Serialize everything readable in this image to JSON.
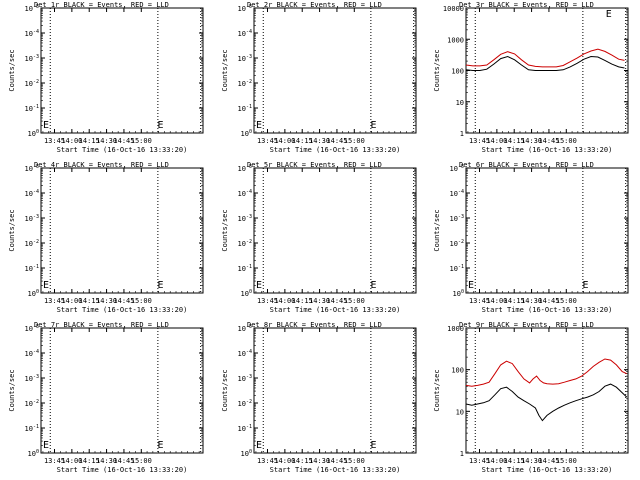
{
  "chart_data": [
    {
      "type": "line",
      "title": "Det 1r BLACK = Events, RED = LLD",
      "xlabel": "Start Time (16-Oct-16 13:33:20)",
      "ylabel": "Counts/sec",
      "x_ticks": [
        "13:45",
        "14:00",
        "14:15",
        "14:30",
        "14:45",
        "15:00"
      ],
      "y_ticks": [
        "10^0",
        "10^-1",
        "10^-2",
        "10^-3",
        "10^-4",
        "10^-5"
      ],
      "vlines_min": [
        8,
        101,
        138
      ],
      "E_markers_min": [
        0,
        99
      ],
      "series": []
    },
    {
      "type": "line",
      "title": "Det 2r BLACK = Events, RED = LLD",
      "xlabel": "Start Time (16-Oct-16 13:33:20)",
      "ylabel": "Counts/sec",
      "x_ticks": [
        "13:45",
        "14:00",
        "14:15",
        "14:30",
        "14:45",
        "15:00"
      ],
      "y_ticks": [
        "10^0",
        "10^-1",
        "10^-2",
        "10^-3",
        "10^-4",
        "10^-5"
      ],
      "vlines_min": [
        8,
        101,
        138
      ],
      "E_markers_min": [
        0,
        99
      ],
      "series": []
    },
    {
      "type": "line",
      "title": "Det 3r BLACK = Events, RED = LLD",
      "xlabel": "Start Time (16-Oct-16 13:33:20)",
      "ylabel": "Counts/sec",
      "x_ticks": [
        "13:45",
        "14:00",
        "14:15",
        "14:30",
        "14:45",
        "15:00"
      ],
      "y_ticks": [
        "1",
        "10",
        "100",
        "1000",
        "10000"
      ],
      "vlines_min": [
        8,
        101,
        138
      ],
      "E_markers_min": [
        119
      ],
      "series": [
        {
          "color": "#000000",
          "x": [
            0,
            6,
            12,
            18,
            24,
            30,
            36,
            42,
            48,
            54,
            60,
            66,
            72,
            78,
            84,
            90,
            96,
            102,
            108,
            114,
            120,
            126,
            132,
            137
          ],
          "y": [
            105,
            100,
            100,
            110,
            160,
            240,
            280,
            220,
            150,
            105,
            100,
            100,
            100,
            100,
            105,
            130,
            170,
            230,
            280,
            270,
            210,
            160,
            130,
            120
          ]
        },
        {
          "color": "#cc0000",
          "x": [
            0,
            6,
            12,
            18,
            24,
            30,
            36,
            42,
            48,
            54,
            60,
            66,
            72,
            78,
            84,
            90,
            96,
            102,
            108,
            114,
            120,
            126,
            132,
            137
          ],
          "y": [
            150,
            140,
            140,
            150,
            220,
            330,
            400,
            340,
            220,
            150,
            135,
            130,
            130,
            130,
            145,
            190,
            250,
            340,
            420,
            480,
            410,
            310,
            230,
            210
          ]
        }
      ]
    },
    {
      "type": "line",
      "title": "Det 4r BLACK = Events, RED = LLD",
      "xlabel": "Start Time (16-Oct-16 13:33:20)",
      "ylabel": "Counts/sec",
      "x_ticks": [
        "13:45",
        "14:00",
        "14:15",
        "14:30",
        "14:45",
        "15:00"
      ],
      "y_ticks": [
        "10^0",
        "10^-1",
        "10^-2",
        "10^-3",
        "10^-4",
        "10^-5"
      ],
      "vlines_min": [
        8,
        101,
        138
      ],
      "E_markers_min": [
        0,
        99
      ],
      "series": []
    },
    {
      "type": "line",
      "title": "Det 5r BLACK = Events, RED = LLD",
      "xlabel": "Start Time (16-Oct-16 13:33:20)",
      "ylabel": "Counts/sec",
      "x_ticks": [
        "13:45",
        "14:00",
        "14:15",
        "14:30",
        "14:45",
        "15:00"
      ],
      "y_ticks": [
        "10^0",
        "10^-1",
        "10^-2",
        "10^-3",
        "10^-4",
        "10^-5"
      ],
      "vlines_min": [
        8,
        101,
        138
      ],
      "E_markers_min": [
        0,
        99
      ],
      "series": []
    },
    {
      "type": "line",
      "title": "Det 6r BLACK = Events, RED = LLD",
      "xlabel": "Start Time (16-Oct-16 13:33:20)",
      "ylabel": "Counts/sec",
      "x_ticks": [
        "13:45",
        "14:00",
        "14:15",
        "14:30",
        "14:45",
        "15:00"
      ],
      "y_ticks": [
        "10^0",
        "10^-1",
        "10^-2",
        "10^-3",
        "10^-4",
        "10^-5"
      ],
      "vlines_min": [
        8,
        101,
        138
      ],
      "E_markers_min": [
        0,
        99
      ],
      "series": []
    },
    {
      "type": "line",
      "title": "Det 7r BLACK = Events, RED = LLD",
      "xlabel": "Start Time (16-Oct-16 13:33:20)",
      "ylabel": "Counts/sec",
      "x_ticks": [
        "13:45",
        "14:00",
        "14:15",
        "14:30",
        "14:45",
        "15:00"
      ],
      "y_ticks": [
        "10^0",
        "10^-1",
        "10^-2",
        "10^-3",
        "10^-4",
        "10^-5"
      ],
      "vlines_min": [
        8,
        101,
        138
      ],
      "E_markers_min": [
        0,
        99
      ],
      "series": []
    },
    {
      "type": "line",
      "title": "Det 8r BLACK = Events, RED = LLD",
      "xlabel": "Start Time (16-Oct-16 13:33:20)",
      "ylabel": "Counts/sec",
      "x_ticks": [
        "13:45",
        "14:00",
        "14:15",
        "14:30",
        "14:45",
        "15:00"
      ],
      "y_ticks": [
        "10^0",
        "10^-1",
        "10^-2",
        "10^-3",
        "10^-4",
        "10^-5"
      ],
      "vlines_min": [
        8,
        101,
        138
      ],
      "E_markers_min": [
        0,
        99
      ],
      "series": []
    },
    {
      "type": "line",
      "title": "Det 9r BLACK = Events, RED = LLD",
      "xlabel": "Start Time (16-Oct-16 13:33:20)",
      "ylabel": "Counts/sec",
      "x_ticks": [
        "13:45",
        "14:00",
        "14:15",
        "14:30",
        "14:45",
        "15:00"
      ],
      "y_ticks": [
        "1",
        "10",
        "100",
        "1000"
      ],
      "vlines_min": [
        8,
        101,
        138
      ],
      "E_markers_min": [],
      "series": [
        {
          "color": "#000000",
          "x": [
            0,
            5,
            10,
            15,
            20,
            25,
            30,
            35,
            40,
            45,
            50,
            55,
            60,
            63,
            66,
            70,
            75,
            80,
            85,
            90,
            95,
            100,
            105,
            110,
            115,
            120,
            125,
            130,
            135,
            139
          ],
          "y": [
            15,
            14,
            15,
            16,
            18,
            25,
            35,
            38,
            30,
            22,
            18,
            15,
            12,
            8,
            6,
            8,
            10,
            12,
            14,
            16,
            18,
            20,
            22,
            25,
            30,
            40,
            45,
            38,
            28,
            22
          ]
        },
        {
          "color": "#cc0000",
          "x": [
            0,
            5,
            10,
            15,
            20,
            25,
            30,
            35,
            40,
            45,
            50,
            55,
            58,
            61,
            64,
            67,
            70,
            75,
            80,
            85,
            90,
            95,
            100,
            105,
            110,
            115,
            120,
            125,
            130,
            135,
            139
          ],
          "y": [
            42,
            40,
            42,
            45,
            50,
            80,
            130,
            160,
            140,
            90,
            60,
            48,
            60,
            70,
            55,
            48,
            46,
            45,
            46,
            50,
            55,
            60,
            70,
            90,
            120,
            150,
            180,
            170,
            130,
            90,
            80
          ]
        }
      ]
    }
  ]
}
